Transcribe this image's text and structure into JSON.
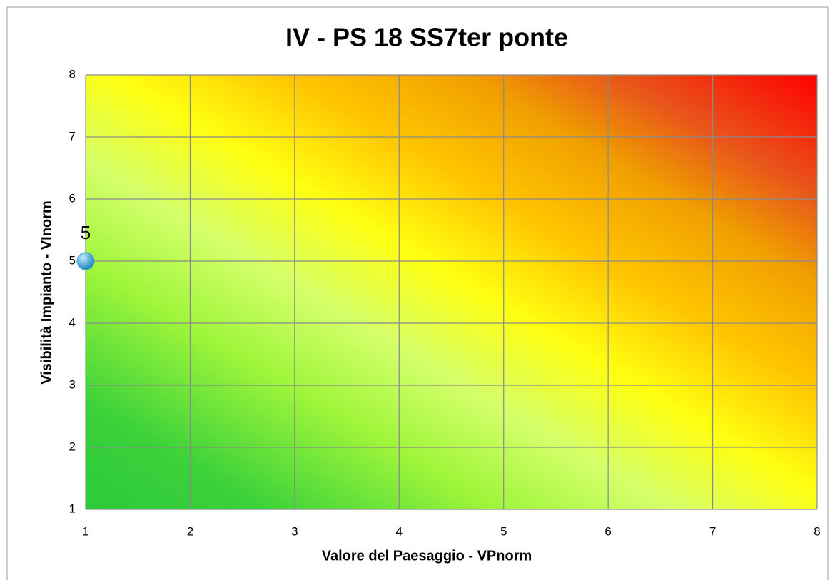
{
  "chart_data": {
    "type": "scatter",
    "title": "IV - PS 18 SS7ter ponte",
    "xlabel": "Valore del Paesaggio - VPnorm",
    "ylabel": "Visibilità Impianto - VInorm",
    "x": [
      1
    ],
    "values": [
      5
    ],
    "color": "#3aa6d8",
    "xlim": [
      1,
      8
    ],
    "ylim": [
      1,
      8
    ],
    "xticks": [
      1,
      2,
      3,
      4,
      5,
      6,
      7,
      8
    ],
    "yticks": [
      1,
      2,
      3,
      4,
      5,
      6,
      7,
      8
    ],
    "grid": true
  }
}
